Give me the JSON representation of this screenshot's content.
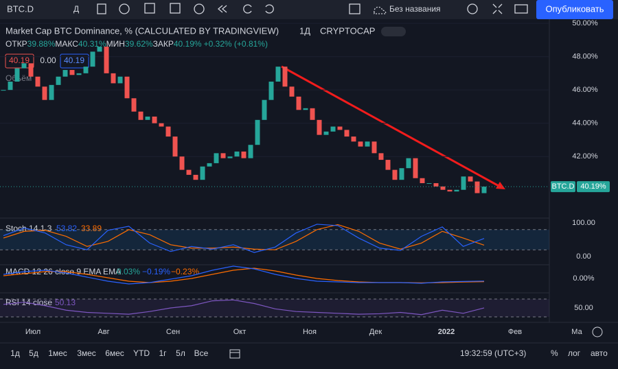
{
  "toolbar": {
    "symbol": "BTC.D",
    "interval": "Д",
    "layout_name": "Без названия",
    "publish": "Опубликовать"
  },
  "legend": {
    "title": "Market Cap BTC Dominance, % (CALCULATED BY TRADINGVIEW)",
    "interval": "1Д",
    "exchange": "CRYPTOCAP",
    "ohlc": [
      [
        "ОТКР",
        "39.88%"
      ],
      [
        "МАКС",
        "40.31%"
      ],
      [
        "МИН",
        "39.62%"
      ],
      [
        "ЗАКР",
        "40.19%"
      ]
    ],
    "change": "+0.32% (+0.81%)",
    "sell": "40.19",
    "spread": "0.00",
    "buy": "40.19",
    "volume": "Объём"
  },
  "chart_data": {
    "type": "candlestick",
    "close": [
      46.0,
      46.5,
      47.3,
      47.6,
      46.8,
      46.2,
      45.4,
      46.3,
      46.8,
      47.2,
      46.9,
      47.0,
      47.4,
      48.3,
      48.6,
      47.0,
      46.4,
      46.8,
      45.5,
      44.7,
      44.2,
      44.4,
      44.0,
      43.8,
      43.2,
      42.0,
      41.2,
      40.9,
      40.6,
      41.4,
      41.6,
      42.2,
      41.9,
      42.0,
      42.3,
      41.9,
      42.7,
      44.2,
      45.4,
      46.5,
      47.4,
      46.2,
      45.6,
      44.8,
      44.9,
      44.2,
      43.3,
      43.5,
      43.8,
      43.6,
      43.2,
      42.9,
      42.6,
      42.9,
      42.2,
      41.8,
      41.2,
      40.6,
      41.3,
      41.9,
      40.7,
      40.4,
      40.4,
      40.2,
      40.0,
      39.9,
      40.0,
      40.8,
      40.5,
      39.8,
      40.19
    ],
    "up_color": "#26a69a",
    "down_color": "#ef5350",
    "ylim": [
      38.3,
      50.25
    ],
    "yticks": [
      {
        "value": 42,
        "label": "42.00%"
      },
      {
        "value": 44,
        "label": "44.00%"
      },
      {
        "value": 46,
        "label": "46.00%"
      },
      {
        "value": 48,
        "label": "48.00%"
      },
      {
        "value": 50,
        "label": "50.00%"
      }
    ],
    "last": {
      "value": 40.19,
      "label": "40.19%",
      "symbol": "BTC.D"
    },
    "x_labels": [
      "Июл",
      "Авг",
      "Сен",
      "Окт",
      "Ноя",
      "Дек",
      "2022",
      "Фев",
      "Ма"
    ]
  },
  "stoch": {
    "label": "Stoch 14 1 3",
    "k_label": "53.82",
    "d_label": "33.89",
    "k": [
      62,
      85,
      70,
      35,
      20,
      78,
      90,
      40,
      15,
      30,
      22,
      35,
      12,
      28,
      70,
      96,
      92,
      55,
      25,
      18,
      60,
      88,
      30,
      53.82
    ],
    "d": [
      55,
      75,
      78,
      60,
      30,
      45,
      80,
      65,
      35,
      25,
      25,
      28,
      22,
      20,
      45,
      80,
      95,
      75,
      40,
      22,
      40,
      75,
      55,
      33.89
    ],
    "yticks": [
      {
        "value": 100,
        "label": "100.00"
      },
      {
        "value": 0,
        "label": "0.00"
      }
    ]
  },
  "macd": {
    "label": "MACD 12 26 close 9 EMA EMA",
    "hist_label": "0.03%",
    "macd_label": "−0.19%",
    "signal_label": "−0.23%",
    "macd": [
      0.3,
      0.5,
      0.6,
      0.4,
      0.1,
      -0.2,
      -0.4,
      -0.3,
      -0.05,
      0.2,
      0.6,
      0.9,
      0.7,
      0.3,
      0,
      -0.2,
      -0.25,
      -0.3,
      -0.3,
      -0.3,
      -0.35,
      -0.25,
      -0.22,
      -0.19
    ],
    "signal": [
      0.2,
      0.35,
      0.5,
      0.5,
      0.3,
      0.05,
      -0.2,
      -0.3,
      -0.2,
      0.0,
      0.3,
      0.6,
      0.75,
      0.55,
      0.25,
      0,
      -0.15,
      -0.25,
      -0.3,
      -0.3,
      -0.32,
      -0.3,
      -0.26,
      -0.23
    ],
    "yticks": [
      {
        "value": 0,
        "label": "0.00%"
      }
    ]
  },
  "rsi": {
    "label": "RSI 14 close",
    "value_label": "50.13",
    "values": [
      58,
      63,
      55,
      45,
      40,
      38,
      36,
      42,
      50,
      55,
      66,
      68,
      60,
      48,
      42,
      40,
      38,
      36,
      37,
      40,
      35,
      45,
      38,
      50.13
    ],
    "yticks": [
      {
        "value": 50,
        "label": "50.00"
      }
    ]
  },
  "bottom": {
    "ranges": [
      "1д",
      "5д",
      "1мес",
      "3мес",
      "6мес",
      "YTD",
      "1г",
      "5л",
      "Все"
    ],
    "time": "19:32:59 (UTC+3)",
    "percent": "%",
    "log": "лог",
    "auto": "авто"
  }
}
